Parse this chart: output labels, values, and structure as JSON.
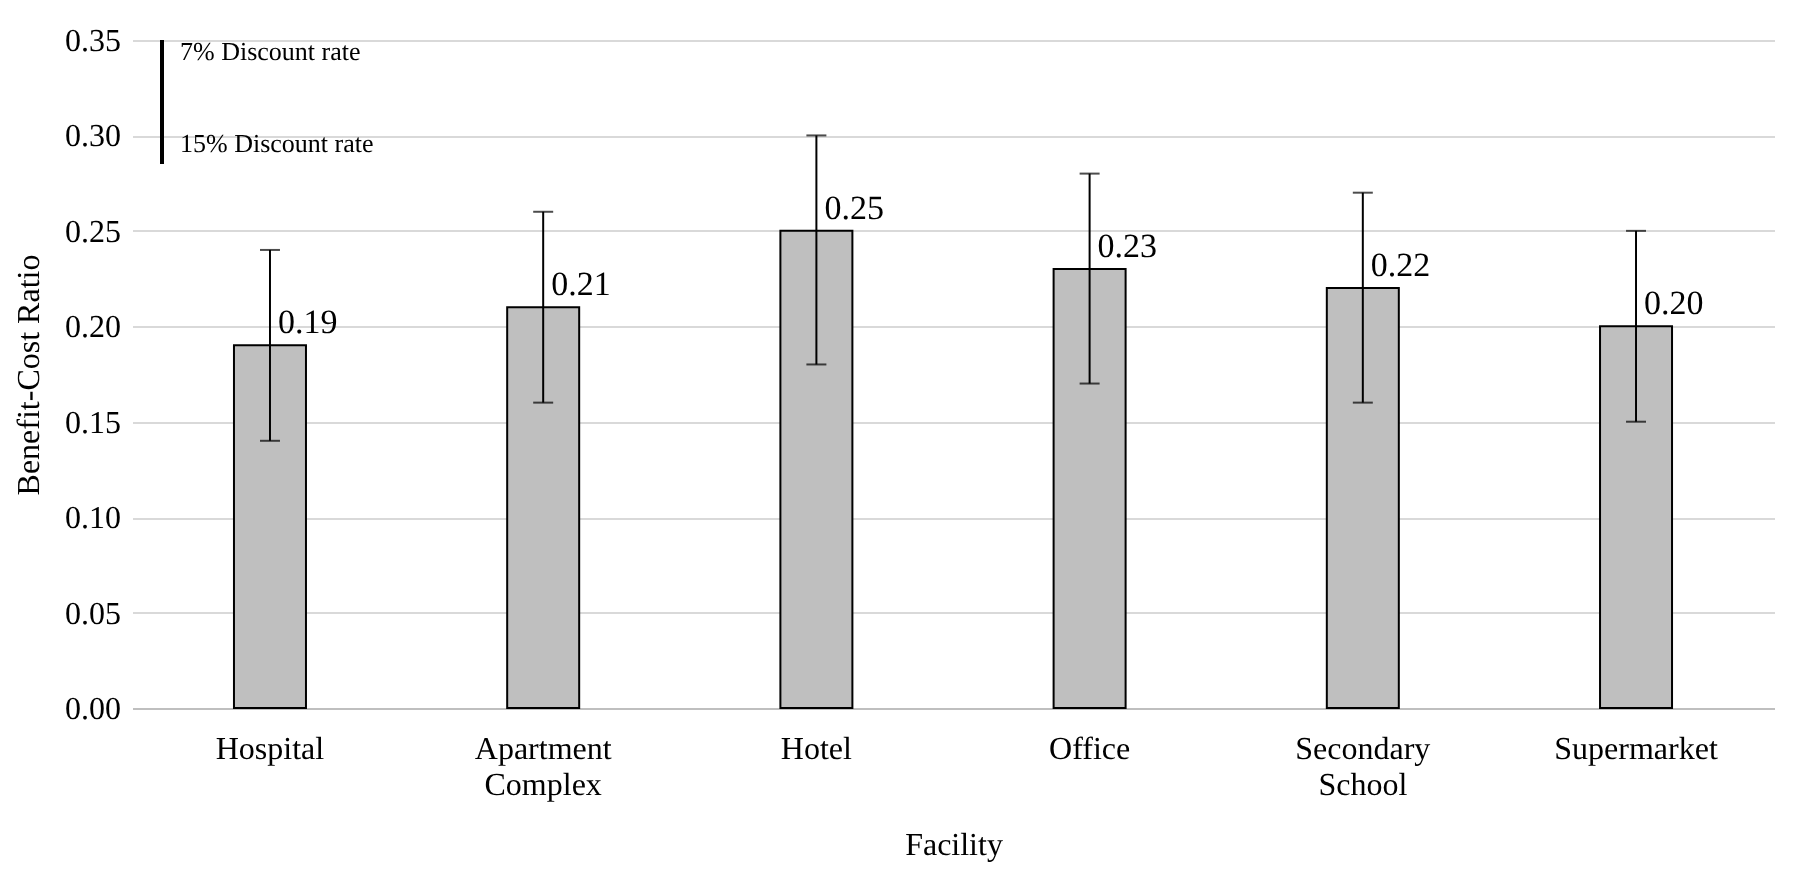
{
  "chart_data": {
    "type": "bar",
    "xlabel": "Facility",
    "ylabel": "Benefit-Cost Ratio",
    "categories": [
      "Hospital",
      "Apartment Complex",
      "Hotel",
      "Office",
      "Secondary School",
      "Supermarket"
    ],
    "values": [
      0.19,
      0.21,
      0.25,
      0.23,
      0.22,
      0.2
    ],
    "value_labels": [
      "0.19",
      "0.21",
      "0.25",
      "0.23",
      "0.22",
      "0.20"
    ],
    "errors": [
      [
        0.14,
        0.24
      ],
      [
        0.16,
        0.26
      ],
      [
        0.18,
        0.3
      ],
      [
        0.17,
        0.28
      ],
      [
        0.16,
        0.27
      ],
      [
        0.15,
        0.25
      ]
    ],
    "color": "#bfbfbf",
    "ylim": [
      0,
      0.35
    ],
    "yticks": [
      {
        "value": 0,
        "label": "0.00"
      },
      {
        "value": 0.05,
        "label": "0.05"
      },
      {
        "value": 0.1,
        "label": "0.10"
      },
      {
        "value": 0.15,
        "label": "0.15"
      },
      {
        "value": 0.2,
        "label": "0.20"
      },
      {
        "value": 0.25,
        "label": "0.25"
      },
      {
        "value": 0.3,
        "label": "0.30"
      },
      {
        "value": 0.35,
        "label": "0.35"
      }
    ],
    "grid": "y",
    "annotations": [
      "7% Discount rate",
      "15% Discount rate"
    ]
  }
}
